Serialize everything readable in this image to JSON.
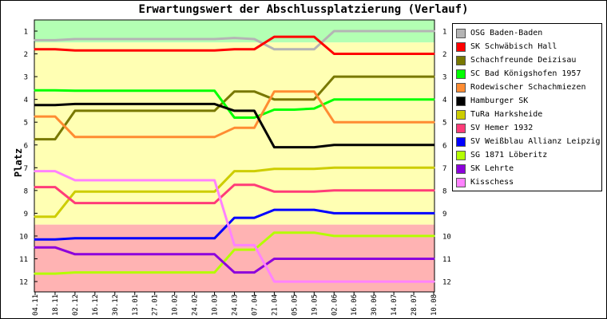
{
  "chart_data": {
    "type": "line",
    "title": "Erwartungswert der Abschlussplatzierung (Verlauf)",
    "xlabel": "",
    "ylabel": "Platz",
    "y_inverted": true,
    "ylim": [
      1,
      12
    ],
    "y_ticks": [
      "1",
      "2",
      "3",
      "4",
      "5",
      "6",
      "7",
      "8",
      "9",
      "10",
      "11",
      "12"
    ],
    "categories": [
      "04.11",
      "18.11",
      "02.12",
      "16.12",
      "30.12",
      "13.01",
      "27.01",
      "10.02",
      "24.02",
      "10.03",
      "24.03",
      "07.04",
      "21.04",
      "05.05",
      "19.05",
      "02.06",
      "16.06",
      "30.06",
      "14.07",
      "28.07",
      "10.08"
    ],
    "zones": [
      {
        "from": 0.5,
        "to": 1.5,
        "color": "#b3ffb3"
      },
      {
        "from": 1.5,
        "to": 9.5,
        "color": "#ffffb3"
      },
      {
        "from": 9.5,
        "to": 12.5,
        "color": "#ffb3b3"
      }
    ],
    "legend_position": "right",
    "series": [
      {
        "name": "OSG Baden-Baden",
        "color": "#b4b4b4",
        "values": [
          1.4,
          1.4,
          1.35,
          1.35,
          1.35,
          1.35,
          1.35,
          1.35,
          1.35,
          1.35,
          1.3,
          1.35,
          1.8,
          1.8,
          1.8,
          1.0,
          1.0,
          1.0,
          1.0,
          1.0,
          1.0
        ]
      },
      {
        "name": "SK Schwäbisch Hall",
        "color": "#ff0000",
        "values": [
          1.8,
          1.8,
          1.85,
          1.85,
          1.85,
          1.85,
          1.85,
          1.85,
          1.85,
          1.85,
          1.8,
          1.8,
          1.25,
          1.25,
          1.25,
          2.0,
          2.0,
          2.0,
          2.0,
          2.0,
          2.0
        ]
      },
      {
        "name": "Schachfreunde Deizisau",
        "color": "#787800",
        "values": [
          5.75,
          5.75,
          4.5,
          4.5,
          4.5,
          4.5,
          4.5,
          4.5,
          4.5,
          4.5,
          3.65,
          3.65,
          4.0,
          4.0,
          4.0,
          3.0,
          3.0,
          3.0,
          3.0,
          3.0,
          3.0
        ]
      },
      {
        "name": "SC Bad Königshofen 1957",
        "color": "#00ff00",
        "values": [
          3.6,
          3.6,
          3.62,
          3.62,
          3.62,
          3.62,
          3.62,
          3.62,
          3.62,
          3.62,
          4.8,
          4.8,
          4.45,
          4.45,
          4.4,
          4.0,
          4.0,
          4.0,
          4.0,
          4.0,
          4.0
        ]
      },
      {
        "name": "Rodewischer Schachmiezen",
        "color": "#ff8c32",
        "values": [
          4.75,
          4.75,
          5.65,
          5.65,
          5.65,
          5.65,
          5.65,
          5.65,
          5.65,
          5.65,
          5.25,
          5.25,
          3.65,
          3.65,
          3.65,
          5.0,
          5.0,
          5.0,
          5.0,
          5.0,
          5.0
        ]
      },
      {
        "name": "Hamburger SK",
        "color": "#000000",
        "values": [
          4.25,
          4.25,
          4.2,
          4.2,
          4.2,
          4.2,
          4.2,
          4.2,
          4.2,
          4.2,
          4.5,
          4.5,
          6.1,
          6.1,
          6.1,
          6.0,
          6.0,
          6.0,
          6.0,
          6.0,
          6.0
        ]
      },
      {
        "name": "TuRa Harksheide",
        "color": "#cdcd00",
        "values": [
          9.15,
          9.15,
          8.05,
          8.05,
          8.05,
          8.05,
          8.05,
          8.05,
          8.05,
          8.05,
          7.15,
          7.15,
          7.05,
          7.05,
          7.05,
          7.0,
          7.0,
          7.0,
          7.0,
          7.0,
          7.0
        ]
      },
      {
        "name": "SV Hemer 1932",
        "color": "#ff3c78",
        "values": [
          7.85,
          7.85,
          8.55,
          8.55,
          8.55,
          8.55,
          8.55,
          8.55,
          8.55,
          8.55,
          7.75,
          7.75,
          8.05,
          8.05,
          8.05,
          8.0,
          8.0,
          8.0,
          8.0,
          8.0,
          8.0
        ]
      },
      {
        "name": "SV Weißblau Allianz Leipzig",
        "color": "#0000ff",
        "values": [
          10.15,
          10.15,
          10.1,
          10.1,
          10.1,
          10.1,
          10.1,
          10.1,
          10.1,
          10.1,
          9.2,
          9.2,
          8.85,
          8.85,
          8.85,
          9.0,
          9.0,
          9.0,
          9.0,
          9.0,
          9.0
        ]
      },
      {
        "name": "SG 1871 Löberitz",
        "color": "#b4ff00",
        "values": [
          11.65,
          11.65,
          11.6,
          11.6,
          11.6,
          11.6,
          11.6,
          11.6,
          11.6,
          11.6,
          10.6,
          10.6,
          9.85,
          9.85,
          9.85,
          10.0,
          10.0,
          10.0,
          10.0,
          10.0,
          10.0
        ]
      },
      {
        "name": "SK Lehrte",
        "color": "#8c00dc",
        "values": [
          10.5,
          10.5,
          10.8,
          10.8,
          10.8,
          10.8,
          10.8,
          10.8,
          10.8,
          10.8,
          11.6,
          11.6,
          11.0,
          11.0,
          11.0,
          11.0,
          11.0,
          11.0,
          11.0,
          11.0,
          11.0
        ]
      },
      {
        "name": "Kisschess",
        "color": "#ff82ff",
        "values": [
          7.15,
          7.15,
          7.55,
          7.55,
          7.55,
          7.55,
          7.55,
          7.55,
          7.55,
          7.55,
          10.4,
          10.4,
          12.0,
          12.0,
          12.0,
          12.0,
          12.0,
          12.0,
          12.0,
          12.0,
          12.0
        ]
      }
    ]
  }
}
